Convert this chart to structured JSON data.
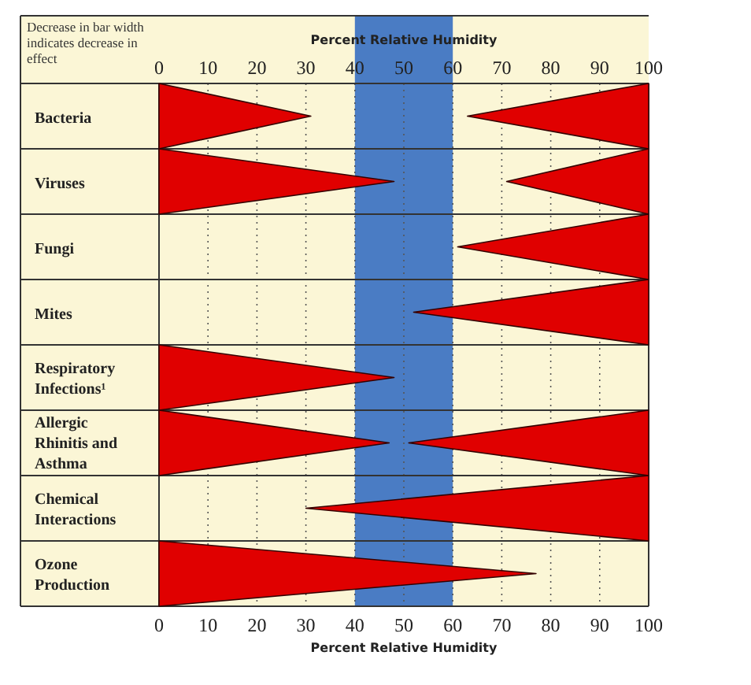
{
  "chart_data": {
    "type": "bar",
    "orientation": "horizontal",
    "xlabel": "Percent Relative Humidity",
    "x2label": "Percent Relative Humidity",
    "categories": [
      "Bacteria",
      "Viruses",
      "Fungi",
      "Mites",
      "Respiratory Infections¹",
      "Allergic Rhinitis and Asthma",
      "Chemical Interactions",
      "Ozone Production"
    ],
    "series": [
      {
        "color": "#e00000",
        "base": [
          0,
          0,
          null,
          null,
          0,
          0,
          null,
          0
        ],
        "values": [
          31,
          48,
          null,
          null,
          48,
          47,
          null,
          77
        ]
      },
      {
        "color": "#e00000",
        "base": [
          63,
          71,
          61,
          52,
          null,
          51,
          30,
          null
        ],
        "values": [
          37,
          29,
          39,
          48,
          null,
          49,
          70,
          null
        ]
      }
    ],
    "xlim": [
      0,
      100
    ],
    "xticks": [
      0,
      10,
      20,
      30,
      40,
      50,
      60,
      70,
      80,
      90,
      100
    ],
    "x2lim": [
      0,
      100
    ],
    "x2ticks": [
      0,
      10,
      20,
      30,
      40,
      50,
      60,
      70,
      80,
      90,
      100
    ],
    "grid": "x",
    "bands": [
      {
        "axis": "x",
        "from": 40,
        "to": 60,
        "color": "#4a7cc4"
      }
    ],
    "annotations": [
      "Decrease in bar width indicates decrease in effect"
    ]
  }
}
